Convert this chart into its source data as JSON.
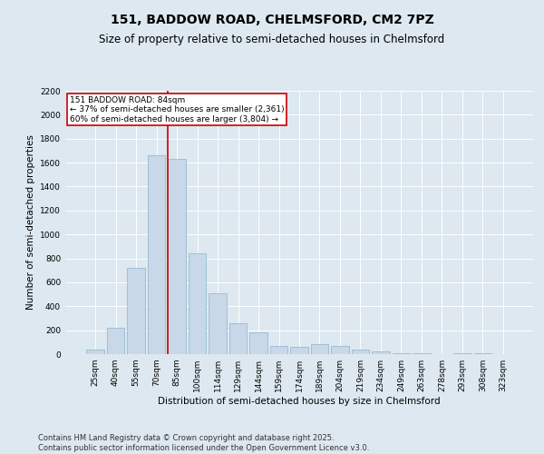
{
  "title": "151, BADDOW ROAD, CHELMSFORD, CM2 7PZ",
  "subtitle": "Size of property relative to semi-detached houses in Chelmsford",
  "xlabel": "Distribution of semi-detached houses by size in Chelmsford",
  "ylabel": "Number of semi-detached properties",
  "categories": [
    "25sqm",
    "40sqm",
    "55sqm",
    "70sqm",
    "85sqm",
    "100sqm",
    "114sqm",
    "129sqm",
    "144sqm",
    "159sqm",
    "174sqm",
    "189sqm",
    "204sqm",
    "219sqm",
    "234sqm",
    "249sqm",
    "263sqm",
    "278sqm",
    "293sqm",
    "308sqm",
    "323sqm"
  ],
  "values": [
    40,
    220,
    720,
    1660,
    1630,
    840,
    510,
    260,
    185,
    65,
    60,
    80,
    65,
    40,
    25,
    10,
    5,
    0,
    10,
    5,
    0
  ],
  "bar_color": "#c8d8e8",
  "bar_edge_color": "#8ab4cc",
  "annotation_title": "151 BADDOW ROAD: 84sqm",
  "annotation_line1": "← 37% of semi-detached houses are smaller (2,361)",
  "annotation_line2": "60% of semi-detached houses are larger (3,804) →",
  "annotation_box_color": "#ffffff",
  "annotation_box_edge": "#cc0000",
  "vline_color": "#cc0000",
  "vline_x": 3.55,
  "ylim": [
    0,
    2200
  ],
  "yticks": [
    0,
    200,
    400,
    600,
    800,
    1000,
    1200,
    1400,
    1600,
    1800,
    2000,
    2200
  ],
  "footer_line1": "Contains HM Land Registry data © Crown copyright and database right 2025.",
  "footer_line2": "Contains public sector information licensed under the Open Government Licence v3.0.",
  "background_color": "#dde8f0",
  "plot_background": "#dde8f0",
  "title_fontsize": 10,
  "subtitle_fontsize": 8.5,
  "axis_label_fontsize": 7.5,
  "tick_fontsize": 6.5,
  "footer_fontsize": 6
}
